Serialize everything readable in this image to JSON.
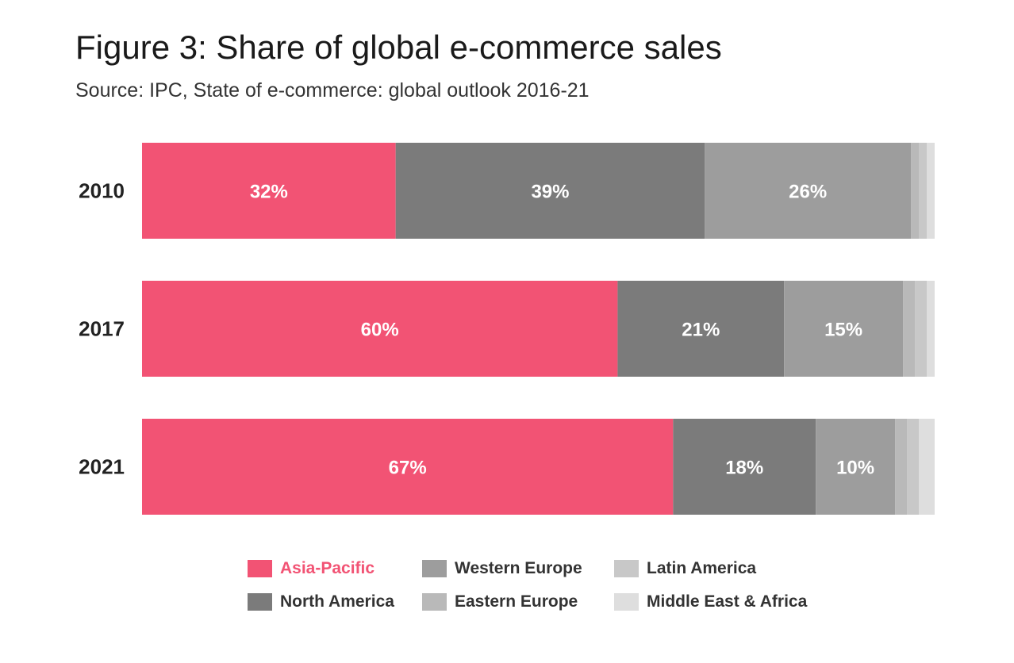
{
  "title": "Figure 3: Share of global e-commerce sales",
  "subtitle": "Source: IPC, State of e-commerce: global outlook 2016-21",
  "colors": {
    "asia_pacific": "#f25374",
    "north_america": "#7b7b7b",
    "western_europe": "#9d9d9d",
    "eastern_europe": "#b9b9b9",
    "latin_america": "#c8c8c8",
    "middle_east_africa": "#dedede",
    "bar_label": "#ffffff",
    "category_label": "#222222",
    "legend_highlight": "#f25374"
  },
  "legend": [
    {
      "label": "Asia-Pacific",
      "color": "#f25374",
      "highlight": true
    },
    {
      "label": "North America",
      "color": "#7b7b7b",
      "highlight": false
    },
    {
      "label": "Western Europe",
      "color": "#9d9d9d",
      "highlight": false
    },
    {
      "label": "Eastern Europe",
      "color": "#b9b9b9",
      "highlight": false
    },
    {
      "label": "Latin America",
      "color": "#c8c8c8",
      "highlight": false
    },
    {
      "label": "Middle East & Africa",
      "color": "#dedede",
      "highlight": false
    }
  ],
  "chart_data": {
    "type": "bar",
    "orientation": "horizontal",
    "stacked": true,
    "categories": [
      "2010",
      "2017",
      "2021"
    ],
    "xlim": [
      0,
      100
    ],
    "grid": false,
    "legend_position": "bottom",
    "series": [
      {
        "name": "Asia-Pacific",
        "color": "#f25374",
        "values": [
          32,
          60,
          67
        ],
        "labels": [
          "32%",
          "60%",
          "67%"
        ]
      },
      {
        "name": "North America",
        "color": "#7b7b7b",
        "values": [
          39,
          21,
          18
        ],
        "labels": [
          "39%",
          "21%",
          "18%"
        ]
      },
      {
        "name": "Western Europe",
        "color": "#9d9d9d",
        "values": [
          26,
          15,
          10
        ],
        "labels": [
          "26%",
          "15%",
          "10%"
        ]
      },
      {
        "name": "Eastern Europe",
        "color": "#b9b9b9",
        "values": [
          1,
          1.5,
          1.5
        ],
        "labels": [
          "",
          "",
          ""
        ]
      },
      {
        "name": "Latin America",
        "color": "#c8c8c8",
        "values": [
          1,
          1.5,
          1.5
        ],
        "labels": [
          "",
          "",
          ""
        ]
      },
      {
        "name": "Middle East & Africa",
        "color": "#dedede",
        "values": [
          1,
          1,
          2
        ],
        "labels": [
          "",
          "",
          ""
        ]
      }
    ]
  }
}
